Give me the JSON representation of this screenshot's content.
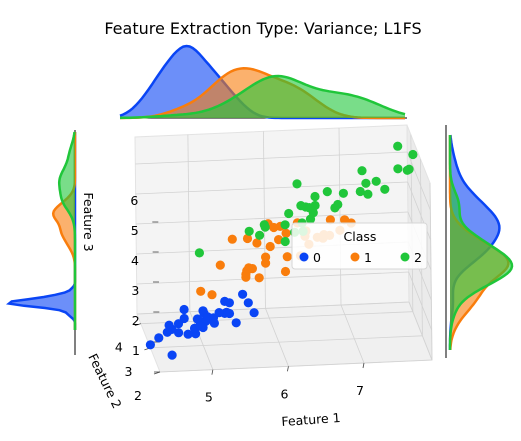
{
  "chart_data": {
    "type": "scatter",
    "subtype": "3d-scatter-with-marginal-kde",
    "title": "Feature Extraction Type: Variance; L1FS",
    "xlabel": "Feature 1",
    "ylabel": "Feature 2",
    "zlabel": "Feature 3",
    "x_ticks": [
      "5",
      "6",
      "7"
    ],
    "y_ticks": [
      "2",
      "3",
      "4"
    ],
    "z_ticks": [
      "1",
      "2",
      "3",
      "4",
      "5",
      "6"
    ],
    "xlim": [
      4.3,
      7.9
    ],
    "ylim": [
      2.0,
      4.4
    ],
    "zlim": [
      1.0,
      6.9
    ],
    "grid": true,
    "legend": {
      "title": "Class",
      "placement": "center-right",
      "entries": [
        "0",
        "1",
        "2"
      ]
    },
    "colors": {
      "0": "#0a45f5",
      "1": "#f97d0c",
      "2": "#20c63a"
    },
    "series": [
      {
        "name": "0",
        "points": [
          [
            5.1,
            3.5,
            1.4
          ],
          [
            4.9,
            3.0,
            1.4
          ],
          [
            4.7,
            3.2,
            1.3
          ],
          [
            4.6,
            3.1,
            1.5
          ],
          [
            5.0,
            3.6,
            1.4
          ],
          [
            5.4,
            3.9,
            1.7
          ],
          [
            4.6,
            3.4,
            1.4
          ],
          [
            5.0,
            3.4,
            1.5
          ],
          [
            4.4,
            2.9,
            1.4
          ],
          [
            4.9,
            3.1,
            1.5
          ],
          [
            5.4,
            3.7,
            1.5
          ],
          [
            4.8,
            3.4,
            1.6
          ],
          [
            4.8,
            3.0,
            1.4
          ],
          [
            4.3,
            3.0,
            1.1
          ],
          [
            5.8,
            4.0,
            1.2
          ],
          [
            5.7,
            4.4,
            1.5
          ],
          [
            5.4,
            3.9,
            1.3
          ],
          [
            5.1,
            3.5,
            1.4
          ],
          [
            5.7,
            3.8,
            1.7
          ],
          [
            5.1,
            3.8,
            1.5
          ],
          [
            5.4,
            3.4,
            1.7
          ],
          [
            5.1,
            3.7,
            1.5
          ],
          [
            4.6,
            3.6,
            1.0
          ],
          [
            5.1,
            3.3,
            1.7
          ],
          [
            4.8,
            3.4,
            1.9
          ],
          [
            5.0,
            3.0,
            1.6
          ],
          [
            5.2,
            3.5,
            1.5
          ],
          [
            5.2,
            3.4,
            1.4
          ],
          [
            4.7,
            3.2,
            1.6
          ],
          [
            5.5,
            4.2,
            1.4
          ],
          [
            4.9,
            3.1,
            1.5
          ],
          [
            5.5,
            3.5,
            1.3
          ],
          [
            4.5,
            2.3,
            1.3
          ],
          [
            5.3,
            3.7,
            1.5
          ],
          [
            5.0,
            3.3,
            1.4
          ]
        ]
      },
      {
        "name": "1",
        "points": [
          [
            7.0,
            3.2,
            4.7
          ],
          [
            6.4,
            3.2,
            4.5
          ],
          [
            6.9,
            3.1,
            4.9
          ],
          [
            5.5,
            2.3,
            4.0
          ],
          [
            6.5,
            2.8,
            4.6
          ],
          [
            5.7,
            2.8,
            4.5
          ],
          [
            6.3,
            3.3,
            4.7
          ],
          [
            4.9,
            2.4,
            3.3
          ],
          [
            6.6,
            2.9,
            4.6
          ],
          [
            5.2,
            2.7,
            3.9
          ],
          [
            5.0,
            2.0,
            3.5
          ],
          [
            5.9,
            3.0,
            4.2
          ],
          [
            6.0,
            2.2,
            4.0
          ],
          [
            6.1,
            2.9,
            4.7
          ],
          [
            5.6,
            2.9,
            3.6
          ],
          [
            6.7,
            3.1,
            4.4
          ],
          [
            5.6,
            3.0,
            4.5
          ],
          [
            5.8,
            2.7,
            4.1
          ],
          [
            6.2,
            2.2,
            4.5
          ],
          [
            5.6,
            2.5,
            3.9
          ],
          [
            5.9,
            3.2,
            4.8
          ],
          [
            6.1,
            2.8,
            4.0
          ],
          [
            6.3,
            2.5,
            4.9
          ],
          [
            6.4,
            2.9,
            4.3
          ],
          [
            6.6,
            3.0,
            4.4
          ],
          [
            6.8,
            2.8,
            4.8
          ],
          [
            6.7,
            3.0,
            5.0
          ],
          [
            6.0,
            2.9,
            4.5
          ],
          [
            5.7,
            2.6,
            3.5
          ],
          [
            5.5,
            2.4,
            3.8
          ],
          [
            5.5,
            2.4,
            3.7
          ],
          [
            5.8,
            2.7,
            3.9
          ],
          [
            6.0,
            2.7,
            5.1
          ],
          [
            5.4,
            3.0,
            4.5
          ],
          [
            6.0,
            3.4,
            4.5
          ]
        ]
      },
      {
        "name": "2",
        "points": [
          [
            6.3,
            3.3,
            6.0
          ],
          [
            5.8,
            2.7,
            5.1
          ],
          [
            7.1,
            3.0,
            5.9
          ],
          [
            6.3,
            2.9,
            5.6
          ],
          [
            6.5,
            3.0,
            5.8
          ],
          [
            7.6,
            3.0,
            6.6
          ],
          [
            4.9,
            2.5,
            4.5
          ],
          [
            7.3,
            2.9,
            6.3
          ],
          [
            6.7,
            2.5,
            5.8
          ],
          [
            7.2,
            3.6,
            6.1
          ],
          [
            6.5,
            3.2,
            5.1
          ],
          [
            6.4,
            2.7,
            5.3
          ],
          [
            6.8,
            3.0,
            5.5
          ],
          [
            5.7,
            2.5,
            5.0
          ],
          [
            5.8,
            2.8,
            5.1
          ],
          [
            6.4,
            3.2,
            5.3
          ],
          [
            6.5,
            3.0,
            5.5
          ],
          [
            7.7,
            3.8,
            6.7
          ],
          [
            7.7,
            2.6,
            6.9
          ],
          [
            6.0,
            2.2,
            5.0
          ],
          [
            6.9,
            3.2,
            5.7
          ],
          [
            5.6,
            2.8,
            4.9
          ],
          [
            7.7,
            2.8,
            6.7
          ],
          [
            6.3,
            2.7,
            4.9
          ],
          [
            6.7,
            3.3,
            5.7
          ],
          [
            7.2,
            3.2,
            6.0
          ],
          [
            6.2,
            2.8,
            4.8
          ],
          [
            6.1,
            3.0,
            4.9
          ],
          [
            6.4,
            2.8,
            5.6
          ],
          [
            7.2,
            3.0,
            5.8
          ],
          [
            7.4,
            2.8,
            6.1
          ],
          [
            7.9,
            3.8,
            6.4
          ],
          [
            6.4,
            2.8,
            5.6
          ],
          [
            6.3,
            2.8,
            5.1
          ],
          [
            6.1,
            2.6,
            5.6
          ]
        ]
      }
    ]
  }
}
